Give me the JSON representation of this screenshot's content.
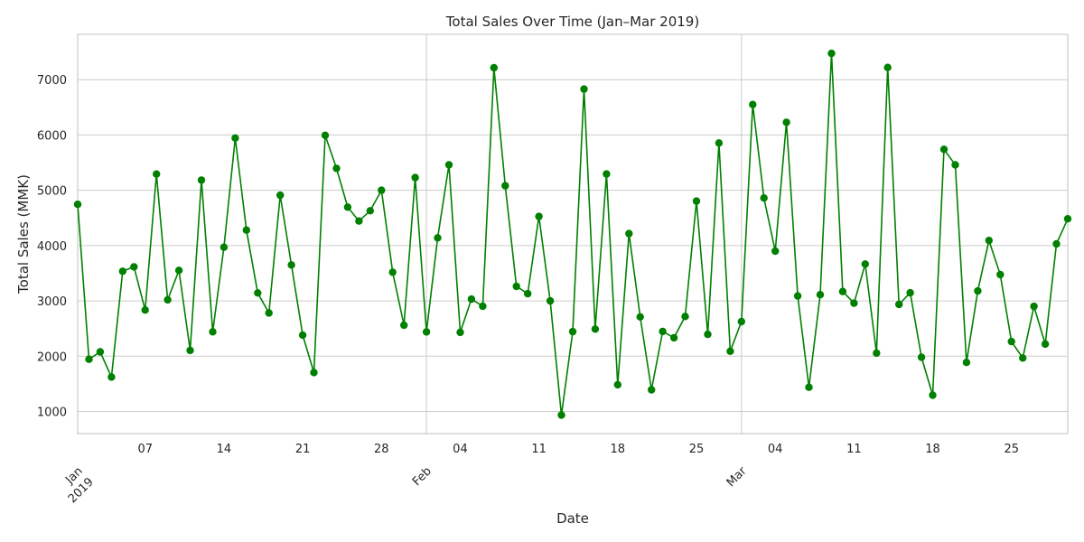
{
  "chart_data": {
    "type": "line",
    "title": "Total Sales Over Time (Jan–Mar 2019)",
    "xlabel": "Date",
    "ylabel": "Total Sales (MMK)",
    "x_start": "2019-01-01",
    "x_end": "2019-03-30",
    "ylim": [
      600,
      7820
    ],
    "y_ticks": [
      1000,
      2000,
      3000,
      4000,
      5000,
      6000,
      7000
    ],
    "x_minor_ticks": [
      {
        "label": "07",
        "date": "2019-01-07"
      },
      {
        "label": "14",
        "date": "2019-01-14"
      },
      {
        "label": "21",
        "date": "2019-01-21"
      },
      {
        "label": "28",
        "date": "2019-01-28"
      },
      {
        "label": "04",
        "date": "2019-02-04"
      },
      {
        "label": "11",
        "date": "2019-02-11"
      },
      {
        "label": "18",
        "date": "2019-02-18"
      },
      {
        "label": "25",
        "date": "2019-02-25"
      },
      {
        "label": "04",
        "date": "2019-03-04"
      },
      {
        "label": "11",
        "date": "2019-03-11"
      },
      {
        "label": "18",
        "date": "2019-03-18"
      },
      {
        "label": "25",
        "date": "2019-03-25"
      }
    ],
    "x_major_ticks": [
      {
        "label": "Jan",
        "sublabel": "2019",
        "date": "2019-01-01"
      },
      {
        "label": "Feb",
        "sublabel": "",
        "date": "2019-02-01"
      },
      {
        "label": "Mar",
        "sublabel": "",
        "date": "2019-03-01"
      }
    ],
    "grid": true,
    "line_color": "#008000",
    "series": [
      {
        "dates": [
          "2019-01-01",
          "2019-01-02",
          "2019-01-03",
          "2019-01-04",
          "2019-01-05",
          "2019-01-06",
          "2019-01-07",
          "2019-01-08",
          "2019-01-09",
          "2019-01-10",
          "2019-01-11",
          "2019-01-12",
          "2019-01-13",
          "2019-01-14",
          "2019-01-15",
          "2019-01-16",
          "2019-01-17",
          "2019-01-18",
          "2019-01-19",
          "2019-01-20",
          "2019-01-21",
          "2019-01-22",
          "2019-01-23",
          "2019-01-24",
          "2019-01-25",
          "2019-01-26",
          "2019-01-27",
          "2019-01-28",
          "2019-01-29",
          "2019-01-30",
          "2019-01-31",
          "2019-02-01",
          "2019-02-02",
          "2019-02-03",
          "2019-02-04",
          "2019-02-05",
          "2019-02-06",
          "2019-02-07",
          "2019-02-08",
          "2019-02-09",
          "2019-02-10",
          "2019-02-11",
          "2019-02-12",
          "2019-02-13",
          "2019-02-14",
          "2019-02-15",
          "2019-02-16",
          "2019-02-17",
          "2019-02-18",
          "2019-02-19",
          "2019-02-20",
          "2019-02-21",
          "2019-02-22",
          "2019-02-23",
          "2019-02-24",
          "2019-02-25",
          "2019-02-26",
          "2019-02-27",
          "2019-02-28",
          "2019-03-01",
          "2019-03-02",
          "2019-03-03",
          "2019-03-04",
          "2019-03-05",
          "2019-03-06",
          "2019-03-07",
          "2019-03-08",
          "2019-03-09",
          "2019-03-10",
          "2019-03-11",
          "2019-03-12",
          "2019-03-13",
          "2019-03-14",
          "2019-03-15",
          "2019-03-16",
          "2019-03-17",
          "2019-03-18",
          "2019-03-19",
          "2019-03-20",
          "2019-03-21",
          "2019-03-22",
          "2019-03-23",
          "2019-03-24",
          "2019-03-25",
          "2019-03-26",
          "2019-03-27",
          "2019-03-28",
          "2019-03-29",
          "2019-03-30"
        ],
        "values": [
          4745,
          1945,
          2078,
          1623,
          3536,
          3615,
          2835,
          5293,
          3020,
          3552,
          2105,
          5183,
          2441,
          3970,
          5945,
          4280,
          3144,
          2780,
          4910,
          3650,
          2380,
          1705,
          5993,
          5396,
          4695,
          4444,
          4630,
          5000,
          3517,
          2560,
          5230,
          2440,
          4140,
          5459,
          2431,
          3032,
          2903,
          7215,
          5083,
          3262,
          3130,
          4527,
          3000,
          935,
          2444,
          6830,
          2490,
          5295,
          1483,
          4216,
          2710,
          1392,
          2448,
          2333,
          2718,
          4805,
          2396,
          5855,
          2090,
          2625,
          6550,
          4860,
          3900,
          6229,
          3090,
          1438,
          3112,
          7475,
          3169,
          2958,
          3666,
          2056,
          7221,
          2936,
          3147,
          1980,
          1295,
          5740,
          5459,
          1888,
          3180,
          4093,
          3475,
          2265,
          1968,
          2901,
          2219,
          4030,
          4485
        ]
      }
    ]
  }
}
